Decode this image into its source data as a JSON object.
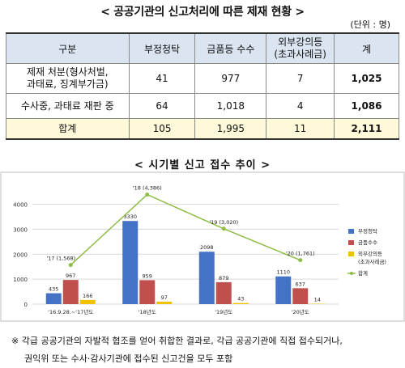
{
  "table_title": "< 공공기관의 신고처리에 따른 제재 현황 >",
  "unit": "(단위 : 명)",
  "table": {
    "headers": [
      "구분",
      "부정청탁",
      "금품등 수수",
      "외부강의등\n(초과사례금)",
      "계"
    ],
    "rows": [
      {
        "label_line1": "제재 처분(형사처벌,",
        "label_line2": "과태료, 징계부가금)",
        "cells": [
          "41",
          "977",
          "7",
          "1,025"
        ]
      },
      {
        "label_line1": "수사중, 과태료 재판 중",
        "label_line2": "",
        "cells": [
          "64",
          "1,018",
          "4",
          "1,086"
        ]
      },
      {
        "label_line1": "합계",
        "label_line2": "",
        "cells": [
          "105",
          "1,995",
          "11",
          "2,111"
        ]
      }
    ]
  },
  "chart_title": "< 시기별 신고 접수 추이 >",
  "chart_data": {
    "type": "bar",
    "categories": [
      "'16.9.28.~'17년도",
      "'18년도",
      "'19년도",
      "'20년도"
    ],
    "series": [
      {
        "name": "부정청탁",
        "values": [
          435,
          3330,
          2098,
          1110
        ],
        "color": "#4472c4"
      },
      {
        "name": "금품수수",
        "values": [
          967,
          959,
          879,
          637
        ],
        "color": "#c0504d"
      },
      {
        "name": "외부강의등\n(초과사례금)",
        "values": [
          166,
          97,
          43,
          14
        ],
        "color": "#f2c200"
      }
    ],
    "line": {
      "name": "합계",
      "values": [
        1568,
        4386,
        3020,
        1761
      ],
      "labels": [
        "'17 (1,568)",
        "'18 (4,386)",
        "'19 (3,020)",
        "'20 (1,761)"
      ],
      "color": "#8fbc45"
    },
    "yticks": [
      0,
      1000,
      2000,
      3000,
      4000
    ],
    "ylim": [
      0,
      4600
    ],
    "legend_position": "right"
  },
  "note_line1": "※ 각급 공공기관의 자발적 협조를 얻어 취합한 결과로, 각급 공공기관에 직접 접수되거나,",
  "note_line2": "권익위 또는 수사·감사기관에 접수된 신고건을 모두 포함"
}
